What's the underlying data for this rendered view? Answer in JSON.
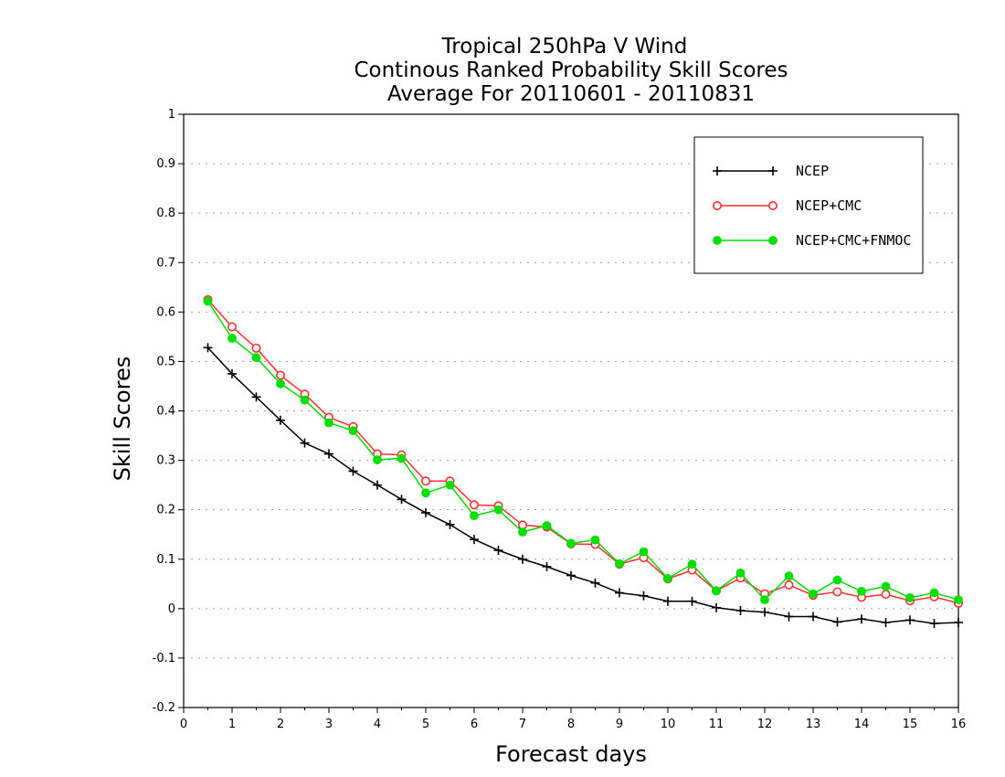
{
  "chart_data": {
    "type": "line",
    "title": [
      "Tropical 250hPa V Wind",
      "Continous Ranked Probability Skill Scores",
      "Average For 20110601 - 20110831"
    ],
    "xlabel": "Forecast days",
    "ylabel": "Skill Scores",
    "xlim": [
      0,
      16
    ],
    "ylim": [
      -0.2,
      1
    ],
    "xticks": [
      "0",
      "1",
      "2",
      "3",
      "4",
      "5",
      "6",
      "7",
      "8",
      "9",
      "10",
      "11",
      "12",
      "13",
      "14",
      "15",
      "16"
    ],
    "yticks": [
      "-0.2",
      "-0.1",
      "0",
      "0.1",
      "0.2",
      "0.3",
      "0.4",
      "0.5",
      "0.6",
      "0.7",
      "0.8",
      "0.9",
      "1"
    ],
    "grid": "horizontal dotted",
    "legend_position": "top-right",
    "x": [
      0.5,
      1,
      1.5,
      2,
      2.5,
      3,
      3.5,
      4,
      4.5,
      5,
      5.5,
      6,
      6.5,
      7,
      7.5,
      8,
      8.5,
      9,
      9.5,
      10,
      10.5,
      11,
      11.5,
      12,
      12.5,
      13,
      13.5,
      14,
      14.5,
      15,
      15.5,
      16
    ],
    "series": [
      {
        "name": "NCEP",
        "color": "#000000",
        "marker": "plus",
        "values": [
          0.528,
          0.475,
          0.428,
          0.381,
          0.335,
          0.313,
          0.278,
          0.25,
          0.221,
          0.194,
          0.17,
          0.14,
          0.118,
          0.1,
          0.085,
          0.067,
          0.052,
          0.032,
          0.026,
          0.015,
          0.015,
          0.002,
          -0.004,
          -0.007,
          -0.016,
          -0.016,
          -0.027,
          -0.021,
          -0.028,
          -0.023,
          -0.03,
          -0.028
        ]
      },
      {
        "name": "NCEP+CMC",
        "color": "#ff3030",
        "marker": "open-circle",
        "values": [
          0.625,
          0.57,
          0.527,
          0.472,
          0.434,
          0.387,
          0.368,
          0.313,
          0.311,
          0.258,
          0.258,
          0.21,
          0.208,
          0.169,
          0.165,
          0.131,
          0.13,
          0.09,
          0.103,
          0.06,
          0.078,
          0.036,
          0.062,
          0.03,
          0.048,
          0.027,
          0.034,
          0.023,
          0.029,
          0.016,
          0.024,
          0.011
        ]
      },
      {
        "name": "NCEP+CMC+FNMOC",
        "color": "#00dd00",
        "marker": "filled-circle",
        "values": [
          0.622,
          0.547,
          0.508,
          0.455,
          0.422,
          0.376,
          0.36,
          0.301,
          0.304,
          0.234,
          0.25,
          0.188,
          0.2,
          0.155,
          0.168,
          0.132,
          0.139,
          0.091,
          0.115,
          0.061,
          0.09,
          0.036,
          0.072,
          0.018,
          0.066,
          0.03,
          0.058,
          0.035,
          0.045,
          0.022,
          0.032,
          0.018
        ]
      }
    ]
  }
}
